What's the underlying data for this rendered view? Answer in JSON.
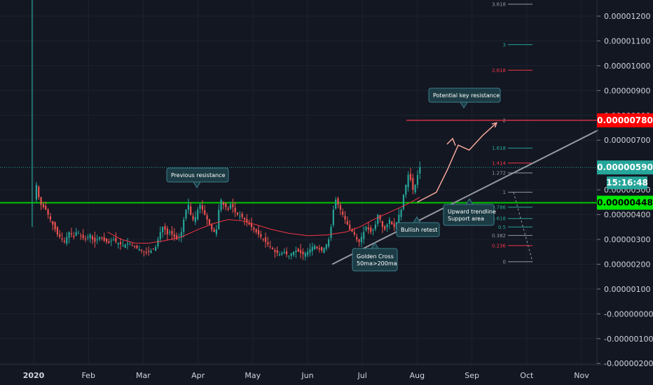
{
  "chart_data": {
    "type": "candlestick",
    "y_axis_ticks": [
      "0.00001200",
      "0.00001100",
      "0.00001000",
      "0.00000900",
      "0.00000800",
      "0.00000700",
      "0.00000500",
      "0.00000400",
      "0.00000300",
      "0.00000200",
      "0.00000100",
      "-0.00000000",
      "-0.00000100",
      "-0.00000200"
    ],
    "y_axis_values": [
      1200,
      1100,
      1000,
      900,
      800,
      700,
      500,
      400,
      300,
      200,
      100,
      0,
      -100,
      -200
    ],
    "ylim": [
      -205,
      1265
    ],
    "x_axis_ticks": [
      "2020",
      "Feb",
      "Mar",
      "Apr",
      "May",
      "Jun",
      "Jul",
      "Aug",
      "Sep",
      "Oct",
      "Nov"
    ],
    "price_tags": {
      "resistance": {
        "label": "0.00000780",
        "value": 780,
        "color": "#ff0000"
      },
      "current": {
        "label": "0.00000590",
        "value": 590,
        "color": "#26a69a"
      },
      "countdown": {
        "label": "15:16:48"
      },
      "support": {
        "label": "0.00000448",
        "value": 448,
        "color": "#00e600"
      }
    },
    "fib_levels": [
      {
        "label": "3.618",
        "value": 1248,
        "color": "#9598a1"
      },
      {
        "label": "3",
        "value": 1085,
        "color": "#26a69a"
      },
      {
        "label": "2.618",
        "value": 982,
        "color": "#f23645"
      },
      {
        "label": "2",
        "value": 780,
        "color": "#9598a1"
      },
      {
        "label": "1.618",
        "value": 668,
        "color": "#26a69a"
      },
      {
        "label": "1.414",
        "value": 608,
        "color": "#f23645"
      },
      {
        "label": "1.272",
        "value": 568,
        "color": "#9598a1"
      },
      {
        "label": "1",
        "value": 490,
        "color": "#9598a1"
      },
      {
        "label": "0.786",
        "value": 430,
        "color": "#26a69a"
      },
      {
        "label": "0.618",
        "value": 384,
        "color": "#26a69a"
      },
      {
        "label": "0.5",
        "value": 350,
        "color": "#26a69a"
      },
      {
        "label": "0.382",
        "value": 316,
        "color": "#9598a1"
      },
      {
        "label": "0.236",
        "value": 275,
        "color": "#f23645"
      },
      {
        "label": "0",
        "value": 210,
        "color": "#9598a1"
      }
    ],
    "horizontal_lines": [
      {
        "name": "key-resistance",
        "value": 780,
        "color": "#f23645"
      },
      {
        "name": "support",
        "value": 448,
        "color": "#00c800"
      },
      {
        "name": "current-price",
        "value": 590,
        "color": "#26a69a"
      }
    ],
    "annotations": [
      {
        "name": "previous-resistance",
        "lines": [
          "Previous resistance"
        ]
      },
      {
        "name": "potential-key-resistance",
        "lines": [
          "Potential key resistance"
        ]
      },
      {
        "name": "golden-cross",
        "lines": [
          "Golden Cross",
          "50ma>200ma"
        ]
      },
      {
        "name": "bullish-retest",
        "lines": [
          "Bullish retest"
        ]
      },
      {
        "name": "upward-trendline",
        "lines": [
          "Upward trendline",
          "Support area"
        ]
      }
    ],
    "candles": {
      "start_month": 0.05,
      "end_month": 7.05,
      "closes": [
        520,
        470,
        440,
        430,
        420,
        400,
        380,
        360,
        340,
        320,
        310,
        300,
        290,
        310,
        330,
        320,
        310,
        330,
        325,
        315,
        305,
        300,
        310,
        320,
        300,
        290,
        300,
        310,
        305,
        295,
        290,
        285,
        295,
        300,
        290,
        285,
        280,
        275,
        280,
        285,
        280,
        275,
        270,
        265,
        260,
        255,
        250,
        245,
        250,
        255,
        260,
        270,
        300,
        330,
        350,
        340,
        320,
        330,
        320,
        310,
        300,
        310,
        330,
        380,
        420,
        440,
        400,
        380,
        390,
        420,
        440,
        420,
        400,
        380,
        360,
        340,
        330,
        340,
        420,
        460,
        440,
        430,
        420,
        440,
        430,
        410,
        400,
        395,
        390,
        380,
        370,
        360,
        350,
        340,
        330,
        320,
        310,
        300,
        290,
        280,
        270,
        260,
        250,
        245,
        240,
        245,
        250,
        240,
        235,
        245,
        250,
        255,
        250,
        245,
        240,
        245,
        250,
        260,
        270,
        275,
        265,
        260,
        255,
        265,
        280,
        300,
        350,
        420,
        460,
        440,
        420,
        400,
        380,
        360,
        340,
        330,
        320,
        300,
        290,
        310,
        330,
        350,
        340,
        330,
        340,
        360,
        400,
        380,
        350,
        340,
        360,
        380,
        360,
        350,
        370,
        400,
        420,
        480,
        520,
        560,
        540,
        500,
        520,
        560,
        590
      ]
    },
    "moving_average_200": [
      {
        "date": 1.35,
        "value": 330
      },
      {
        "date": 1.6,
        "value": 300
      },
      {
        "date": 1.85,
        "value": 285
      },
      {
        "date": 2.1,
        "value": 285
      },
      {
        "date": 2.4,
        "value": 295
      },
      {
        "date": 2.7,
        "value": 310
      },
      {
        "date": 3.0,
        "value": 340
      },
      {
        "date": 3.3,
        "value": 365
      },
      {
        "date": 3.55,
        "value": 380
      },
      {
        "date": 3.8,
        "value": 375
      },
      {
        "date": 4.05,
        "value": 360
      },
      {
        "date": 4.35,
        "value": 340
      },
      {
        "date": 4.65,
        "value": 325
      },
      {
        "date": 5.0,
        "value": 315
      },
      {
        "date": 5.35,
        "value": 318
      },
      {
        "date": 5.7,
        "value": 330
      },
      {
        "date": 5.95,
        "value": 350
      },
      {
        "date": 6.2,
        "value": 380
      },
      {
        "date": 6.5,
        "value": 410
      },
      {
        "date": 6.8,
        "value": 440
      },
      {
        "date": 7.05,
        "value": 470
      }
    ],
    "trendline": {
      "start": {
        "date": 5.45,
        "value": 200
      },
      "end": {
        "date": 10.3,
        "value": 740
      }
    },
    "projection_arrows": [
      {
        "name": "projection-1",
        "points": [
          {
            "date": 7.0,
            "value": 450
          },
          {
            "date": 7.35,
            "value": 490
          },
          {
            "date": 7.55,
            "value": 580
          },
          {
            "date": 7.75,
            "value": 680
          },
          {
            "date": 7.95,
            "value": 660
          },
          {
            "date": 8.2,
            "value": 720
          },
          {
            "date": 8.45,
            "value": 770
          }
        ]
      }
    ]
  }
}
